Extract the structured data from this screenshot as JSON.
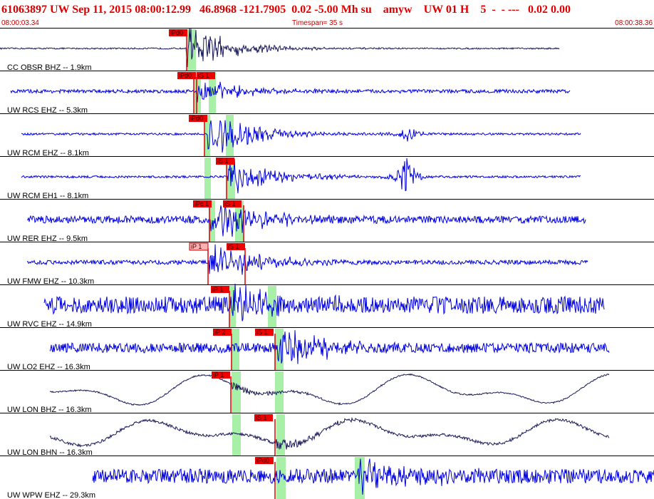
{
  "header": {
    "title": "61063897 UW Sep 11, 2015 08:00:12.99   46.8968 -121.7905  0.02 -5.00 Mh su    amyw    UW 01 H    5  -  - ---   0.02 0.00",
    "start_time": "08:00:03.34",
    "timespan": "Timespan=  35 s",
    "end_time": "08:00:38.36"
  },
  "traces": [
    {
      "label": "CC OBSR BHZ -- 1.9km",
      "picks": [
        "iPd0"
      ]
    },
    {
      "label": "UW RCS EHZ -- 5.3km",
      "picks": [
        "iPd0",
        "iS 1"
      ]
    },
    {
      "label": "UW RCM EHZ -- 8.1km",
      "picks": [
        "iPd0"
      ]
    },
    {
      "label": "UW RCM EH1 -- 8.1km",
      "picks": [
        "iS 1"
      ]
    },
    {
      "label": "UW RER EHZ -- 9.5km",
      "picks": [
        "iPc 1",
        "iS 1"
      ]
    },
    {
      "label": "UW FMW EHZ -- 10.3km",
      "picks": [
        "iP 1",
        "iS 1"
      ]
    },
    {
      "label": "UW RVC EHZ -- 14.9km",
      "picks": [
        "iP 1"
      ]
    },
    {
      "label": "UW LO2 EHZ -- 16.3km",
      "picks": [
        "iP 2",
        "iS 1"
      ]
    },
    {
      "label": "UW LON BHZ -- 16.3km",
      "picks": [
        "iP 1"
      ]
    },
    {
      "label": "UW LON BHN -- 16.3km",
      "picks": [
        "iS 1"
      ]
    },
    {
      "label": "UW WPW EHZ -- 29.3km",
      "picks": [
        "iPd0"
      ]
    }
  ]
}
